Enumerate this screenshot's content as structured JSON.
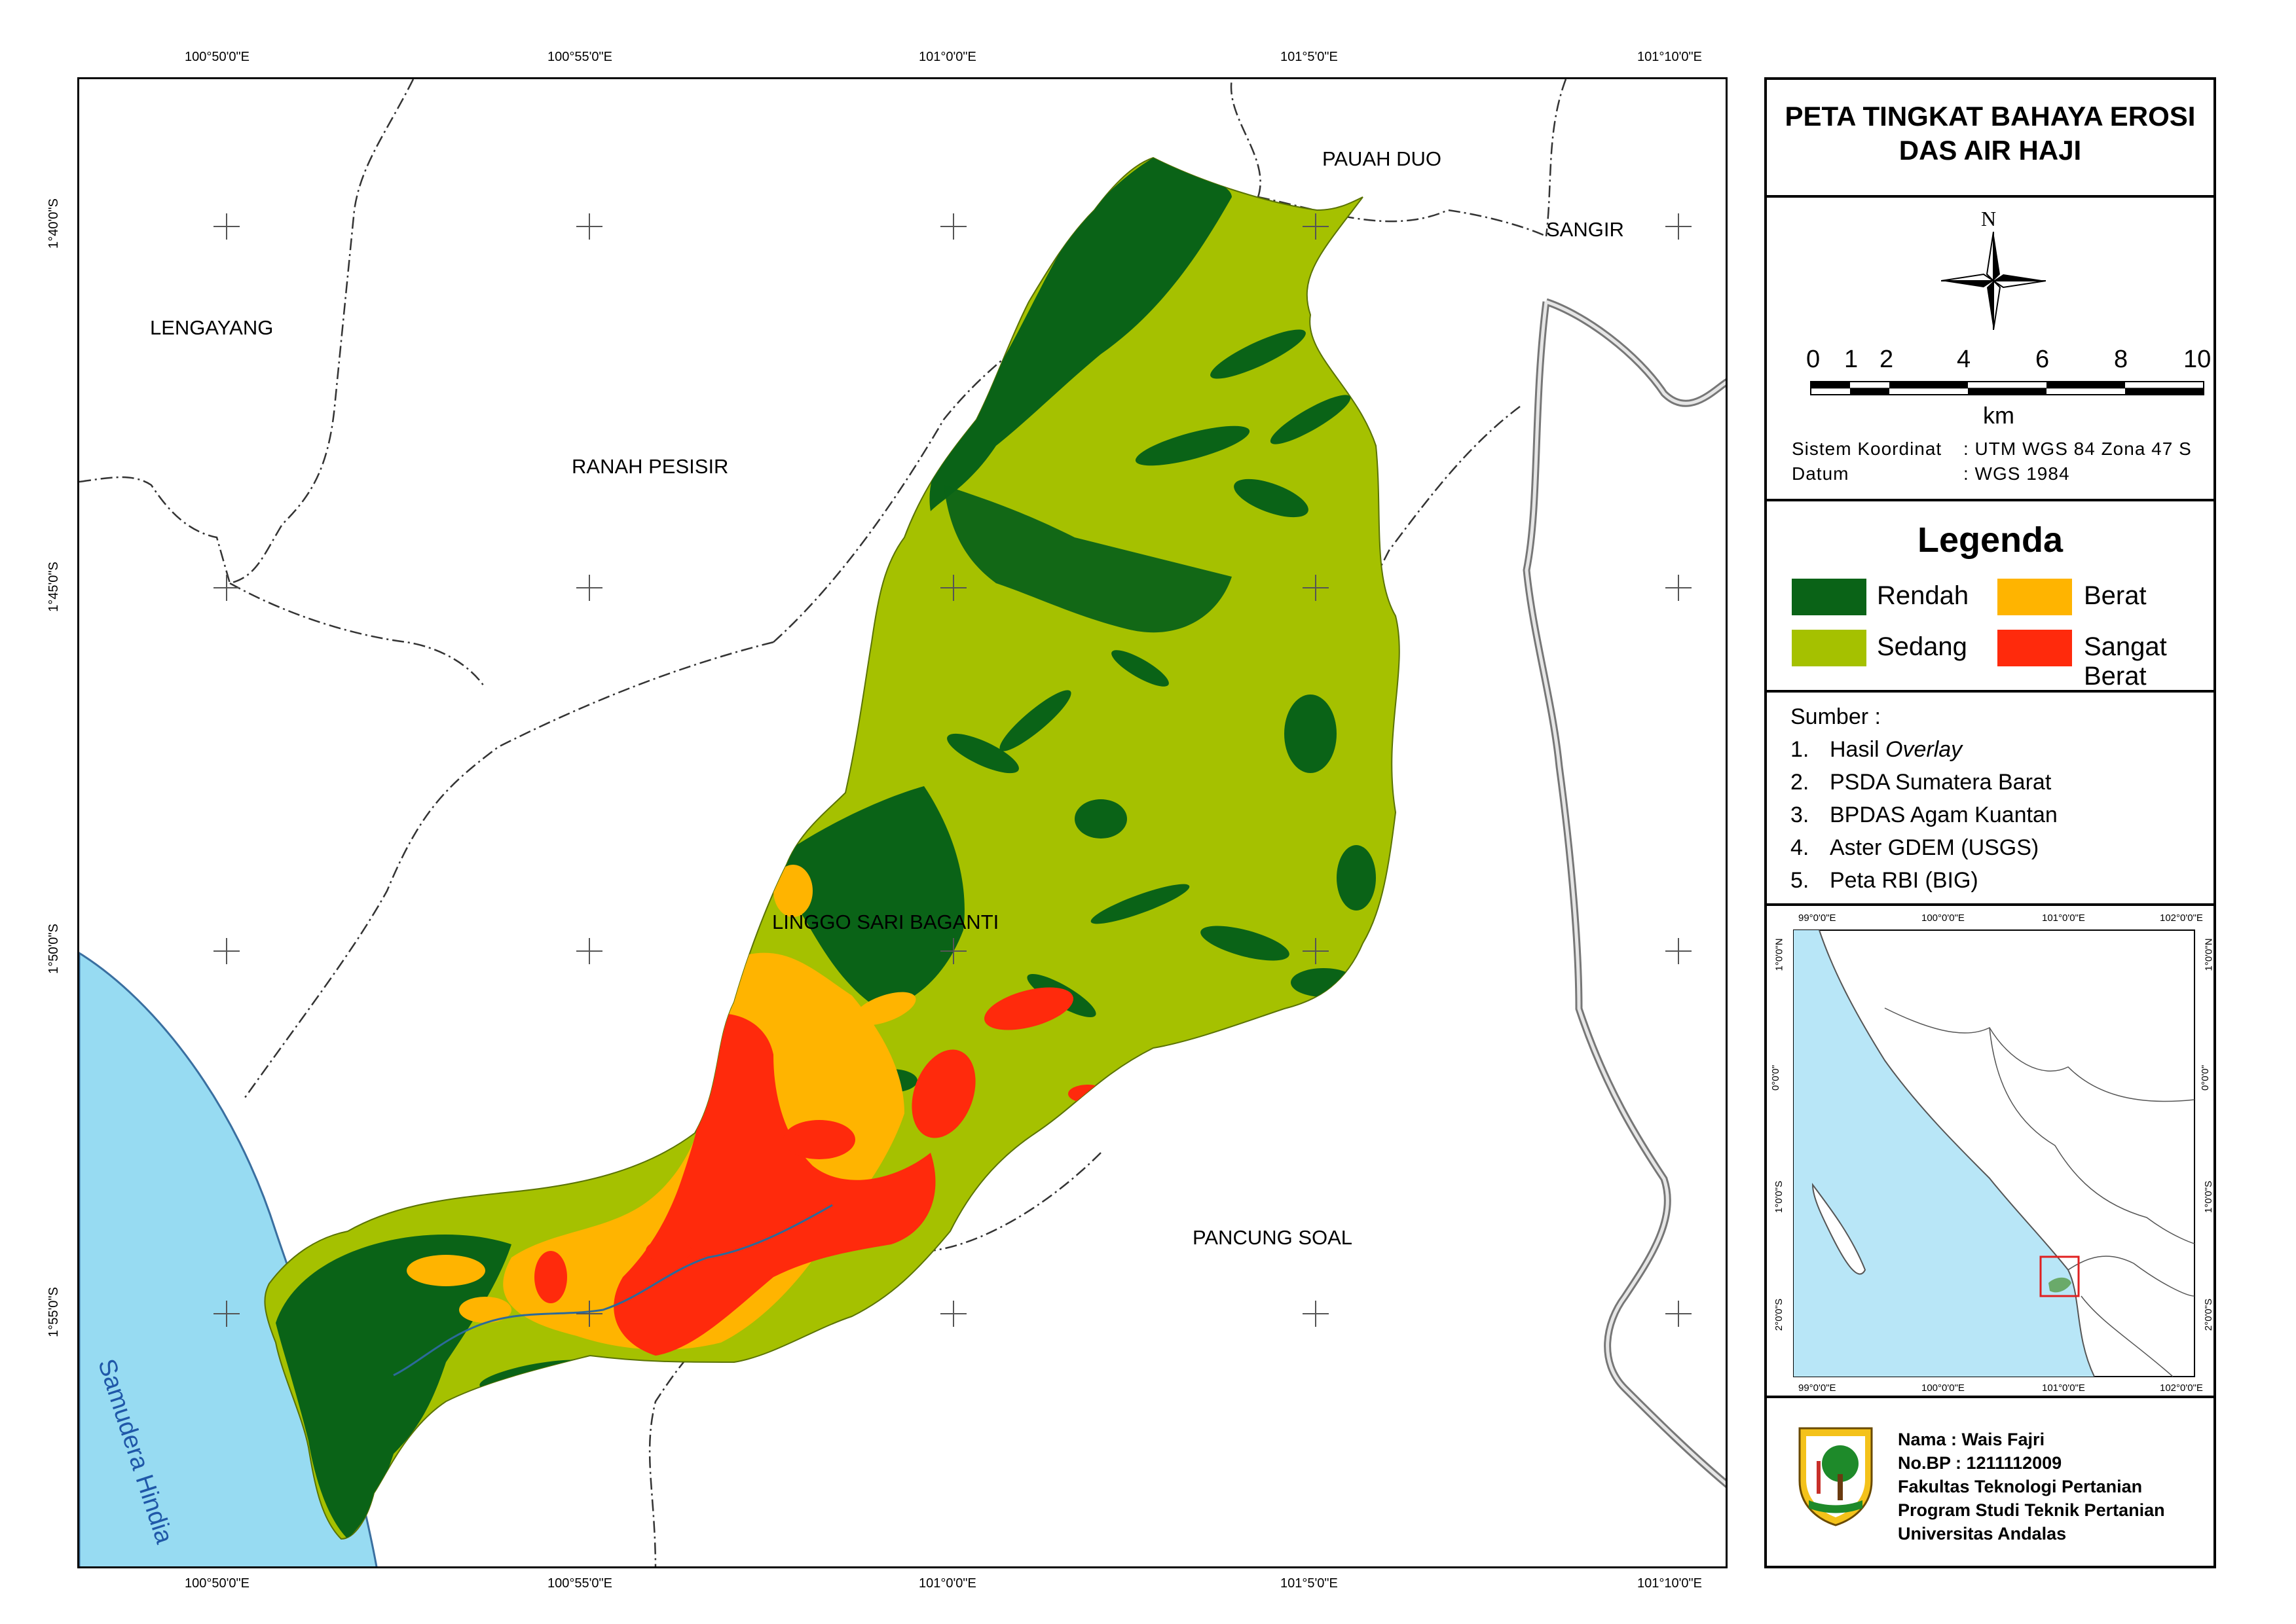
{
  "map": {
    "top_ticks": [
      "100°50'0\"E",
      "100°55'0\"E",
      "101°0'0\"E",
      "101°5'0\"E",
      "101°10'0\"E"
    ],
    "bottom_ticks": [
      "100°50'0\"E",
      "100°55'0\"E",
      "101°0'0\"E",
      "101°5'0\"E",
      "101°10'0\"E"
    ],
    "left_ticks": [
      "1°40'0\"S",
      "1°45'0\"S",
      "1°50'0\"S",
      "1°55'0\"S"
    ],
    "regions": {
      "lengayang": "LENGAYANG",
      "ranah_pesisir": "RANAH PESISIR",
      "pauah_duo": "PAUAH DUO",
      "sangir": "SANGIR",
      "linggo_sari_baganti": "LINGGO SARI BAGANTI",
      "pancung_soal": "PANCUNG SOAL",
      "ocean": "Samudera Hindia"
    },
    "colors": {
      "ocean": "#97dbf2",
      "rendah": "#0a6317",
      "sedang": "#a5c100",
      "berat": "#ffb400",
      "sangat_berat": "#ff2a0c"
    }
  },
  "panel": {
    "title_line1": "PETA TINGKAT BAHAYA EROSI",
    "title_line2": "DAS AIR HAJI",
    "north": "N",
    "scale_labels": [
      "0",
      "1",
      "2",
      "4",
      "6",
      "8",
      "10"
    ],
    "scale_unit": "km",
    "coord_system_label": "Sistem Koordinat",
    "coord_system_value": ": UTM WGS 84 Zona 47 S",
    "datum_label": "Datum",
    "datum_value": ": WGS 1984",
    "legend_title": "Legenda",
    "legend": {
      "rendah": "Rendah",
      "berat": "Berat",
      "sedang": "Sedang",
      "sangat_berat": "Sangat Berat"
    },
    "sources_title": "Sumber :",
    "sources": [
      {
        "num": "1.",
        "text": "Hasil ",
        "italic": "Overlay"
      },
      {
        "num": "2.",
        "text": "PSDA Sumatera Barat"
      },
      {
        "num": "3.",
        "text": "BPDAS Agam Kuantan"
      },
      {
        "num": "4.",
        "text": "Aster GDEM (USGS)"
      },
      {
        "num": "5.",
        "text": "Peta RBI (BIG)"
      }
    ],
    "inset": {
      "top_ticks": [
        "99°0'0\"E",
        "100°0'0\"E",
        "101°0'0\"E",
        "102°0'0\"E"
      ],
      "bottom_ticks": [
        "99°0'0\"E",
        "100°0'0\"E",
        "101°0'0\"E",
        "102°0'0\"E"
      ],
      "side_ticks": [
        "1°0'0\"N",
        "0°0'0\"",
        "1°0'0\"S",
        "2°0'0\"S"
      ]
    },
    "author": {
      "name": "Nama  : Wais Fajri",
      "bp": "No.BP : 1211112009",
      "faculty": "Fakultas Teknologi Pertanian",
      "program": "Program Studi Teknik Pertanian",
      "university": "Universitas Andalas"
    }
  }
}
